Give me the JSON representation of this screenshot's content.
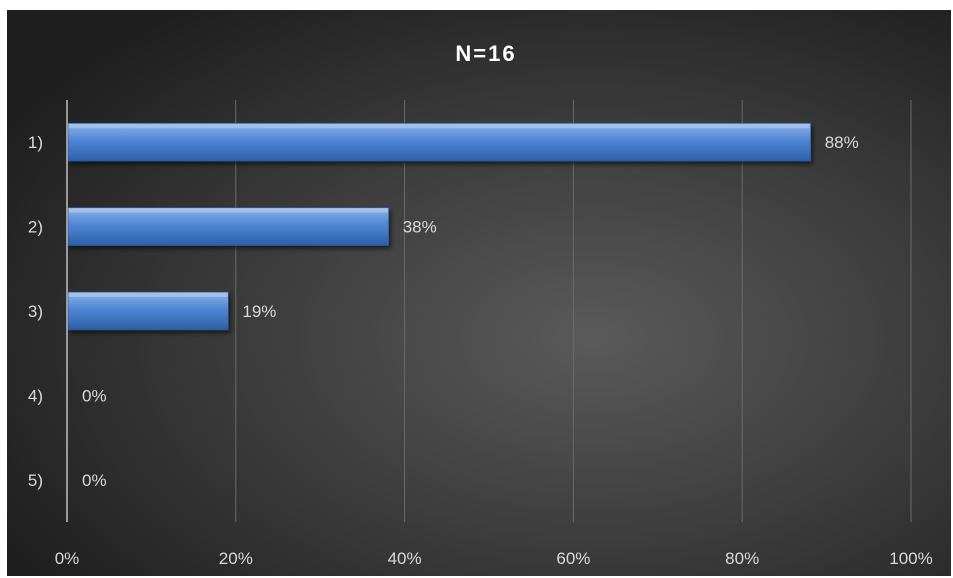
{
  "chart_data": {
    "type": "bar",
    "orientation": "horizontal",
    "title": "N=16",
    "categories": [
      "1)",
      "2)",
      "3)",
      "4)",
      "5)"
    ],
    "values": [
      88,
      38,
      19,
      0,
      0
    ],
    "data_labels": [
      "88%",
      "38%",
      "19%",
      "0%",
      "0%"
    ],
    "x_ticks": [
      0,
      20,
      40,
      60,
      80,
      100
    ],
    "x_tick_labels": [
      "0%",
      "20%",
      "40%",
      "60%",
      "80%",
      "100%"
    ],
    "xlim": [
      0,
      100
    ],
    "xlabel": "",
    "ylabel": "",
    "grid": "vertical",
    "legend": "none",
    "colors": {
      "background_center": "#5a5a5a",
      "background_edge": "#1f1f1f",
      "bar_top": "#8db3e8",
      "bar_mid": "#4f86d4",
      "bar_bottom": "#2d5fa8",
      "text": "#ffffff",
      "label_text": "#d9d9d9",
      "gridline": "#6a6a6a",
      "axis_line": "#bfbfbf"
    }
  }
}
